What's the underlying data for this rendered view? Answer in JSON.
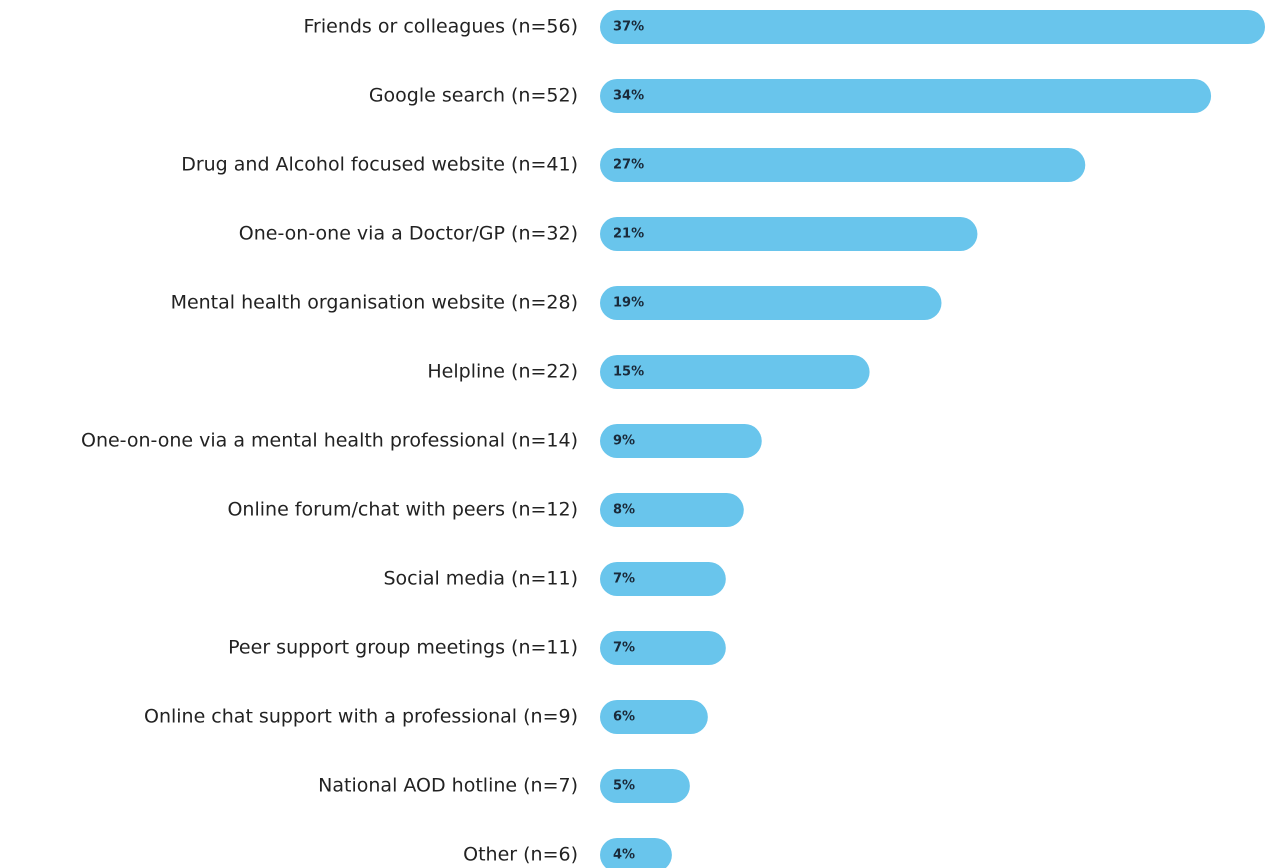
{
  "chart_data": {
    "type": "bar",
    "orientation": "horizontal",
    "color": "#69c5ec",
    "categories": [
      "Friends or colleagues (n=56)",
      "Google search (n=52)",
      "Drug and Alcohol focused website (n=41)",
      "One-on-one via a Doctor/GP (n=32)",
      "Mental health organisation website (n=28)",
      "Helpline (n=22)",
      "One-on-one via a mental health professional (n=14)",
      "Online forum/chat with peers (n=12)",
      "Social media (n=11)",
      "Peer support group meetings (n=11)",
      "Online chat support with a professional (n=9)",
      "National AOD hotline (n=7)",
      "Other (n=6)"
    ],
    "values": [
      37,
      34,
      27,
      21,
      19,
      15,
      9,
      8,
      7,
      7,
      6,
      5,
      4
    ],
    "value_labels": [
      "37%",
      "34%",
      "27%",
      "21%",
      "19%",
      "15%",
      "9%",
      "8%",
      "7%",
      "7%",
      "6%",
      "5%",
      "4%"
    ]
  }
}
